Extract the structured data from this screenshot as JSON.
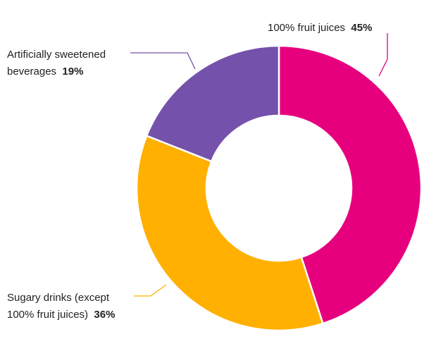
{
  "chart_data": {
    "type": "pie",
    "donut": true,
    "title": "",
    "slices": [
      {
        "label_lines": [
          "100% fruit juices"
        ],
        "value": 45,
        "value_label": "45%",
        "color": "#E6007E"
      },
      {
        "label_lines": [
          "Sugary drinks (except",
          "100% fruit juices)"
        ],
        "value": 36,
        "value_label": "36%",
        "color": "#FFB000"
      },
      {
        "label_lines": [
          "Artificially sweetened",
          "beverages"
        ],
        "value": 19,
        "value_label": "19%",
        "color": "#7451AA"
      }
    ],
    "start_angle_deg": 0,
    "direction": "clockwise",
    "legend": "none",
    "labels": "outside-with-leader-lines"
  }
}
